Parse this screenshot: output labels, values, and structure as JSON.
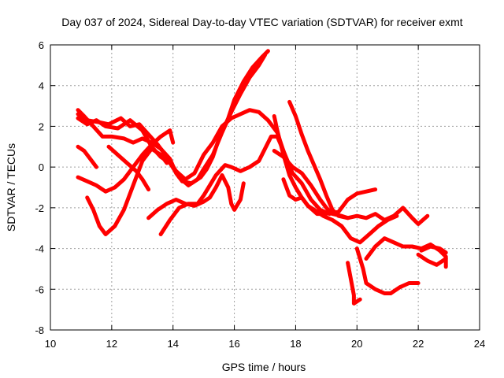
{
  "chart_data": {
    "type": "scatter",
    "title": "Day 037 of 2024, Sidereal Day-to-day VTEC variation (SDTVAR) for receiver exmt",
    "xlabel": "GPS time / hours",
    "ylabel": "SDTVAR / TECUs",
    "xlim": [
      10,
      24
    ],
    "ylim": [
      -8,
      6
    ],
    "xticks": [
      "10",
      "12",
      "14",
      "16",
      "18",
      "20",
      "22",
      "24"
    ],
    "yticks": [
      "-8",
      "-6",
      "-4",
      "-2",
      "0",
      "2",
      "4",
      "6"
    ],
    "grid": true,
    "legend": "none",
    "marker": "+",
    "color": "#ff0000",
    "series": [
      {
        "points": [
          [
            10.9,
            2.8
          ],
          [
            11.1,
            2.5
          ],
          [
            11.4,
            2.0
          ],
          [
            11.7,
            1.5
          ],
          [
            12.0,
            1.5
          ],
          [
            12.4,
            1.4
          ],
          [
            12.7,
            1.2
          ],
          [
            13.0,
            1.4
          ],
          [
            13.3,
            1.2
          ],
          [
            13.6,
            0.9
          ],
          [
            13.9,
            0.4
          ],
          [
            14.1,
            -0.3
          ],
          [
            14.3,
            -0.7
          ],
          [
            14.6,
            -0.8
          ],
          [
            14.9,
            -0.5
          ],
          [
            15.1,
            -0.1
          ],
          [
            15.3,
            0.5
          ],
          [
            15.5,
            1.4
          ],
          [
            15.8,
            2.4
          ],
          [
            16.0,
            3.3
          ],
          [
            16.3,
            4.2
          ],
          [
            16.6,
            4.9
          ],
          [
            16.9,
            5.4
          ],
          [
            17.1,
            5.7
          ]
        ]
      },
      {
        "points": [
          [
            10.9,
            2.4
          ],
          [
            11.2,
            2.1
          ],
          [
            11.5,
            2.3
          ],
          [
            11.8,
            2.0
          ],
          [
            12.2,
            1.9
          ],
          [
            12.6,
            2.3
          ],
          [
            13.0,
            1.8
          ],
          [
            13.3,
            1.0
          ],
          [
            13.6,
            0.5
          ],
          [
            13.9,
            0.2
          ],
          [
            14.2,
            -0.5
          ],
          [
            14.5,
            -0.9
          ],
          [
            14.8,
            -0.6
          ],
          [
            15.0,
            -0.1
          ],
          [
            15.3,
            0.6
          ],
          [
            15.6,
            1.7
          ],
          [
            15.9,
            2.7
          ],
          [
            16.2,
            3.6
          ],
          [
            16.5,
            4.4
          ],
          [
            16.8,
            5.0
          ],
          [
            17.0,
            5.5
          ]
        ]
      },
      {
        "points": [
          [
            10.9,
            2.6
          ],
          [
            11.2,
            2.3
          ],
          [
            11.6,
            2.2
          ],
          [
            11.9,
            2.1
          ],
          [
            12.3,
            2.4
          ],
          [
            12.6,
            2.0
          ],
          [
            12.9,
            2.1
          ],
          [
            13.2,
            1.6
          ],
          [
            13.5,
            1.1
          ],
          [
            13.8,
            0.5
          ],
          [
            14.1,
            -0.2
          ],
          [
            14.4,
            -0.6
          ],
          [
            14.7,
            -0.3
          ],
          [
            15.0,
            0.6
          ],
          [
            15.3,
            1.2
          ],
          [
            15.6,
            2.0
          ],
          [
            15.9,
            2.4
          ],
          [
            16.2,
            2.6
          ],
          [
            16.5,
            2.8
          ],
          [
            16.8,
            2.7
          ],
          [
            17.1,
            2.3
          ],
          [
            17.4,
            1.7
          ],
          [
            17.6,
            0.8
          ],
          [
            17.9,
            -0.3
          ],
          [
            18.2,
            -0.8
          ],
          [
            18.5,
            -1.6
          ],
          [
            18.8,
            -2.1
          ],
          [
            19.1,
            -2.3
          ],
          [
            19.4,
            -2.2
          ],
          [
            19.7,
            -1.6
          ],
          [
            20.0,
            -1.3
          ],
          [
            20.3,
            -1.2
          ],
          [
            20.6,
            -1.1
          ]
        ]
      },
      {
        "points": [
          [
            10.9,
            -0.5
          ],
          [
            11.2,
            -0.7
          ],
          [
            11.5,
            -0.9
          ],
          [
            11.8,
            -1.2
          ],
          [
            12.1,
            -1.0
          ],
          [
            12.4,
            -0.6
          ],
          [
            12.7,
            0.0
          ],
          [
            13.0,
            0.6
          ],
          [
            13.3,
            1.1
          ],
          [
            13.6,
            1.5
          ],
          [
            13.9,
            1.8
          ],
          [
            14.0,
            1.2
          ]
        ]
      },
      {
        "points": [
          [
            10.9,
            1.0
          ],
          [
            11.1,
            0.8
          ],
          [
            11.3,
            0.4
          ],
          [
            11.5,
            0.0
          ]
        ]
      },
      {
        "points": [
          [
            11.2,
            -1.5
          ],
          [
            11.4,
            -2.1
          ],
          [
            11.6,
            -2.9
          ],
          [
            11.8,
            -3.3
          ],
          [
            12.1,
            -2.9
          ],
          [
            12.4,
            -2.1
          ],
          [
            12.7,
            -0.9
          ],
          [
            13.0,
            0.3
          ],
          [
            13.3,
            0.9
          ],
          [
            13.6,
            0.6
          ],
          [
            13.8,
            0.2
          ]
        ]
      },
      {
        "points": [
          [
            11.9,
            1.0
          ],
          [
            12.2,
            0.6
          ],
          [
            12.5,
            0.2
          ],
          [
            12.8,
            -0.2
          ],
          [
            13.0,
            -0.6
          ],
          [
            13.2,
            -1.1
          ]
        ]
      },
      {
        "points": [
          [
            13.2,
            -2.5
          ],
          [
            13.5,
            -2.1
          ],
          [
            13.8,
            -1.8
          ],
          [
            14.1,
            -1.6
          ],
          [
            14.4,
            -1.8
          ],
          [
            14.7,
            -1.9
          ],
          [
            15.0,
            -1.7
          ],
          [
            15.2,
            -1.5
          ],
          [
            15.4,
            -1.0
          ],
          [
            15.6,
            -0.4
          ],
          [
            15.8,
            -1.0
          ],
          [
            15.9,
            -1.8
          ],
          [
            16.0,
            -2.1
          ],
          [
            16.2,
            -1.6
          ],
          [
            16.3,
            -0.8
          ]
        ]
      },
      {
        "points": [
          [
            13.6,
            -3.3
          ],
          [
            13.9,
            -2.6
          ],
          [
            14.2,
            -2.0
          ],
          [
            14.5,
            -1.8
          ],
          [
            14.8,
            -1.8
          ],
          [
            15.0,
            -1.4
          ],
          [
            15.2,
            -0.9
          ],
          [
            15.4,
            -0.4
          ],
          [
            15.7,
            0.1
          ],
          [
            15.9,
            0.0
          ],
          [
            16.2,
            -0.2
          ],
          [
            16.5,
            0.0
          ],
          [
            16.8,
            0.3
          ],
          [
            17.0,
            0.9
          ],
          [
            17.2,
            1.5
          ],
          [
            17.4,
            1.5
          ],
          [
            17.6,
            0.8
          ]
        ]
      },
      {
        "points": [
          [
            17.3,
            2.5
          ],
          [
            17.4,
            1.8
          ],
          [
            17.6,
            0.6
          ],
          [
            17.8,
            -0.4
          ],
          [
            18.0,
            -1.0
          ],
          [
            18.2,
            -1.5
          ],
          [
            18.4,
            -1.9
          ],
          [
            18.6,
            -2.1
          ],
          [
            18.9,
            -2.4
          ],
          [
            19.2,
            -2.6
          ],
          [
            19.5,
            -2.9
          ],
          [
            19.8,
            -3.5
          ],
          [
            20.1,
            -3.7
          ],
          [
            20.4,
            -3.3
          ],
          [
            20.7,
            -2.9
          ],
          [
            21.0,
            -2.6
          ],
          [
            21.3,
            -2.4
          ]
        ]
      },
      {
        "points": [
          [
            17.8,
            3.2
          ],
          [
            18.0,
            2.5
          ],
          [
            18.2,
            1.6
          ],
          [
            18.4,
            0.8
          ],
          [
            18.6,
            0.1
          ],
          [
            18.8,
            -0.6
          ],
          [
            19.0,
            -1.4
          ],
          [
            19.2,
            -2.1
          ],
          [
            19.4,
            -2.4
          ],
          [
            19.7,
            -2.5
          ],
          [
            20.0,
            -2.4
          ],
          [
            20.3,
            -2.5
          ],
          [
            20.6,
            -2.3
          ],
          [
            20.9,
            -2.6
          ],
          [
            21.2,
            -2.4
          ],
          [
            21.5,
            -2.0
          ],
          [
            21.8,
            -2.5
          ],
          [
            22.0,
            -2.8
          ],
          [
            22.3,
            -2.4
          ]
        ]
      },
      {
        "points": [
          [
            17.3,
            0.8
          ],
          [
            17.6,
            0.5
          ],
          [
            17.9,
            0.0
          ],
          [
            18.2,
            -0.3
          ],
          [
            18.5,
            -0.9
          ],
          [
            18.8,
            -1.6
          ],
          [
            19.0,
            -2.0
          ],
          [
            19.2,
            -2.3
          ],
          [
            19.5,
            -2.4
          ],
          [
            19.7,
            -2.5
          ]
        ]
      },
      {
        "points": [
          [
            17.6,
            -0.6
          ],
          [
            17.8,
            -1.4
          ],
          [
            18.0,
            -1.6
          ],
          [
            18.2,
            -1.5
          ],
          [
            18.4,
            -1.9
          ],
          [
            18.7,
            -2.3
          ],
          [
            19.0,
            -2.3
          ]
        ]
      },
      {
        "points": [
          [
            19.7,
            -4.7
          ],
          [
            19.8,
            -5.5
          ],
          [
            19.9,
            -6.3
          ],
          [
            19.9,
            -6.7
          ],
          [
            20.1,
            -6.5
          ]
        ]
      },
      {
        "points": [
          [
            20.0,
            -4.0
          ],
          [
            20.2,
            -5.0
          ],
          [
            20.3,
            -5.7
          ],
          [
            20.6,
            -6.0
          ],
          [
            20.9,
            -6.2
          ],
          [
            21.1,
            -6.2
          ],
          [
            21.4,
            -5.9
          ],
          [
            21.7,
            -5.7
          ],
          [
            22.0,
            -5.7
          ]
        ]
      },
      {
        "points": [
          [
            20.3,
            -4.5
          ],
          [
            20.6,
            -3.9
          ],
          [
            20.9,
            -3.5
          ],
          [
            21.2,
            -3.7
          ],
          [
            21.5,
            -3.9
          ],
          [
            21.8,
            -3.9
          ],
          [
            22.1,
            -4.0
          ],
          [
            22.4,
            -3.8
          ],
          [
            22.7,
            -4.1
          ],
          [
            22.9,
            -4.4
          ],
          [
            22.9,
            -4.9
          ]
        ]
      },
      {
        "points": [
          [
            22.0,
            -4.3
          ],
          [
            22.3,
            -4.6
          ],
          [
            22.6,
            -4.8
          ],
          [
            22.9,
            -4.5
          ]
        ]
      },
      {
        "points": [
          [
            22.1,
            -4.1
          ],
          [
            22.4,
            -3.9
          ],
          [
            22.7,
            -4.0
          ],
          [
            22.9,
            -4.2
          ]
        ]
      }
    ]
  }
}
